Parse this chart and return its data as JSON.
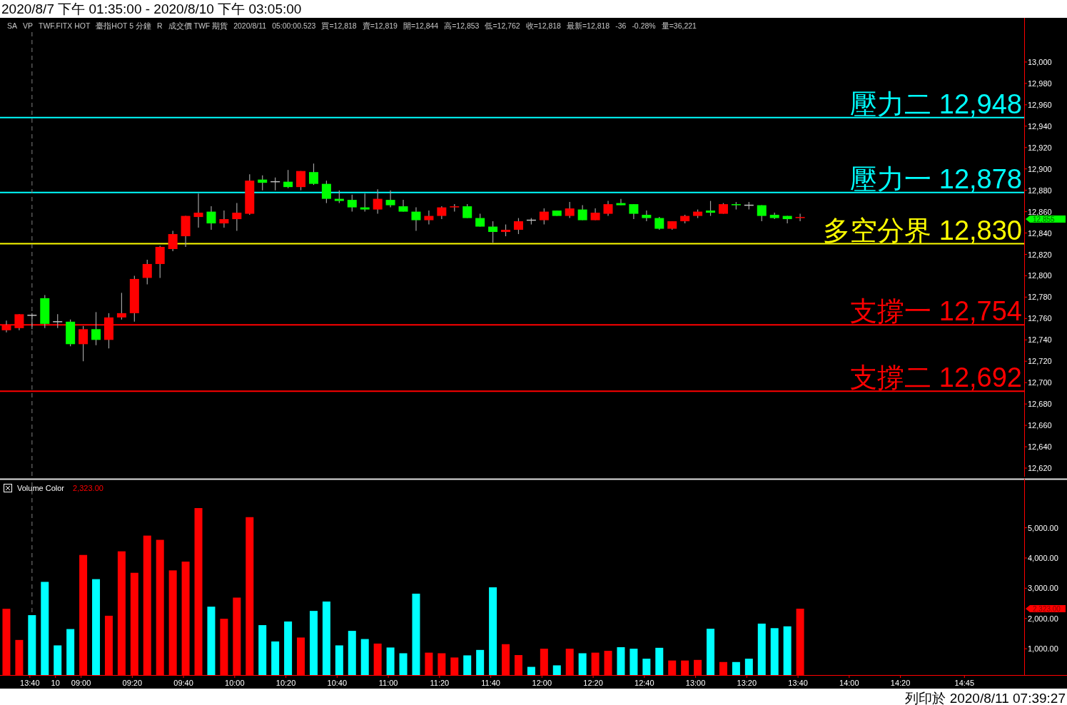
{
  "chart_data": [
    {
      "type": "candlestick",
      "title": "2020/8/7 下午 01:35:00 - 2020/8/10 下午 03:05:00",
      "annotations": [
        "SA",
        "VP",
        "TWF.FITX HOT",
        "臺指HOT 5 分鐘",
        "R",
        "成交價 TWF 期貨",
        "2020/8/11",
        "05:00:00.523",
        "買=12,818",
        "賣=12,819",
        "開=12,844",
        "高=12,853",
        "低=12,762",
        "收=12,818",
        "最新=12,818",
        "-36",
        "-0.28%",
        "量=36,221",
        "12,855"
      ],
      "categories": [
        null,
        null,
        "13:40",
        null,
        "10",
        null,
        "09:00",
        null,
        null,
        null,
        "09:20",
        null,
        null,
        null,
        "09:40",
        null,
        null,
        null,
        "10:00",
        null,
        null,
        null,
        "10:20",
        null,
        null,
        null,
        "10:40",
        null,
        null,
        null,
        "11:00",
        null,
        null,
        null,
        "11:20",
        null,
        null,
        null,
        "11:40",
        null,
        null,
        null,
        "12:00",
        null,
        null,
        null,
        "12:20",
        null,
        null,
        null,
        "12:40",
        null,
        null,
        null,
        "13:00",
        null,
        null,
        null,
        "13:20",
        null,
        null,
        null,
        "13:40",
        null,
        null,
        null,
        "14:00",
        null,
        null,
        null,
        "14:20",
        null,
        null,
        null,
        null,
        "14:45",
        null,
        null,
        null,
        null
      ],
      "ohlc": [
        [
          12749,
          12758,
          12747,
          12754
        ],
        [
          12751,
          12764,
          12749,
          12764
        ],
        [
          12763,
          12765,
          12750,
          12763
        ],
        [
          12779,
          12782,
          12751,
          12755
        ],
        [
          12757,
          12764,
          12751,
          12757
        ],
        [
          12757,
          12759,
          12734,
          12736
        ],
        [
          12736,
          12753,
          12720,
          12750
        ],
        [
          12750,
          12766,
          12735,
          12740
        ],
        [
          12740,
          12765,
          12732,
          12761
        ],
        [
          12761,
          12784,
          12759,
          12765
        ],
        [
          12765,
          12800,
          12757,
          12797
        ],
        [
          12798,
          12815,
          12792,
          12811
        ],
        [
          12811,
          12828,
          12798,
          12827
        ],
        [
          12825,
          12842,
          12823,
          12839
        ],
        [
          12837,
          12856,
          12827,
          12856
        ],
        [
          12855,
          12877,
          12845,
          12859
        ],
        [
          12860,
          12865,
          12843,
          12849
        ],
        [
          12849,
          12861,
          12845,
          12853
        ],
        [
          12853,
          12868,
          12842,
          12859
        ],
        [
          12858,
          12895,
          12857,
          12889
        ],
        [
          12890,
          12894,
          12880,
          12887
        ],
        [
          12888,
          12892,
          12880,
          12888
        ],
        [
          12888,
          12899,
          12882,
          12883
        ],
        [
          12883,
          12898,
          12880,
          12898
        ],
        [
          12897,
          12905,
          12885,
          12886
        ],
        [
          12886,
          12889,
          12868,
          12872
        ],
        [
          12872,
          12880,
          12868,
          12870
        ],
        [
          12871,
          12876,
          12860,
          12864
        ],
        [
          12864,
          12877,
          12860,
          12862
        ],
        [
          12862,
          12881,
          12858,
          12872
        ],
        [
          12871,
          12880,
          12864,
          12866
        ],
        [
          12865,
          12871,
          12860,
          12860
        ],
        [
          12860,
          12864,
          12842,
          12852
        ],
        [
          12852,
          12861,
          12848,
          12856
        ],
        [
          12856,
          12865,
          12853,
          12864
        ],
        [
          12864,
          12867,
          12860,
          12865
        ],
        [
          12865,
          12867,
          12854,
          12854
        ],
        [
          12854,
          12858,
          12846,
          12846
        ],
        [
          12846,
          12851,
          12831,
          12841
        ],
        [
          12841,
          12848,
          12837,
          12843
        ],
        [
          12843,
          12854,
          12839,
          12851
        ],
        [
          12852,
          12854,
          12848,
          12852
        ],
        [
          12852,
          12863,
          12848,
          12860
        ],
        [
          12861,
          12861,
          12856,
          12856
        ],
        [
          12856,
          12869,
          12854,
          12863
        ],
        [
          12862,
          12866,
          12852,
          12852
        ],
        [
          12852,
          12863,
          12852,
          12859
        ],
        [
          12858,
          12870,
          12856,
          12867
        ],
        [
          12868,
          12872,
          12866,
          12866
        ],
        [
          12867,
          12867,
          12853,
          12858
        ],
        [
          12857,
          12861,
          12851,
          12854
        ],
        [
          12854,
          12855,
          12843,
          12844
        ],
        [
          12844,
          12851,
          12843,
          12851
        ],
        [
          12851,
          12857,
          12849,
          12856
        ],
        [
          12856,
          12862,
          12854,
          12860
        ],
        [
          12861,
          12870,
          12856,
          12859
        ],
        [
          12858,
          12868,
          12858,
          12867
        ],
        [
          12867,
          12869,
          12862,
          12866
        ],
        [
          12866,
          12869,
          12862,
          12866
        ],
        [
          12866,
          12866,
          12851,
          12856
        ],
        [
          12857,
          12859,
          12853,
          12854
        ],
        [
          12856,
          12856,
          12849,
          12853
        ],
        [
          12854,
          12858,
          12851,
          12855
        ],
        null,
        null,
        null,
        null,
        null,
        null,
        null,
        null,
        null,
        null,
        null,
        null,
        null,
        null,
        null,
        null,
        null
      ],
      "colors": [
        "#ff0000",
        "#ff0000",
        "#c0c0c0",
        "#00ff00",
        "#c0c0c0",
        "#00ff00",
        "#ff0000",
        "#00ff00",
        "#ff0000",
        "#ff0000",
        "#ff0000",
        "#ff0000",
        "#ff0000",
        "#ff0000",
        "#ff0000",
        "#ff0000",
        "#00ff00",
        "#ff0000",
        "#ff0000",
        "#ff0000",
        "#00ff00",
        "#c0c0c0",
        "#00ff00",
        "#ff0000",
        "#00ff00",
        "#00ff00",
        "#00ff00",
        "#00ff00",
        "#00ff00",
        "#ff0000",
        "#00ff00",
        "#00ff00",
        "#00ff00",
        "#ff0000",
        "#ff0000",
        "#ff0000",
        "#00ff00",
        "#00ff00",
        "#00ff00",
        "#ff0000",
        "#ff0000",
        "#c0c0c0",
        "#ff0000",
        "#00ff00",
        "#ff0000",
        "#00ff00",
        "#ff0000",
        "#ff0000",
        "#00ff00",
        "#00ff00",
        "#00ff00",
        "#00ff00",
        "#ff0000",
        "#ff0000",
        "#ff0000",
        "#00ff00",
        "#ff0000",
        "#00ff00",
        "#c0c0c0",
        "#00ff00",
        "#00ff00",
        "#00ff00",
        "#ff0000",
        null,
        null,
        null,
        null,
        null,
        null,
        null,
        null,
        null,
        null,
        null,
        null,
        null,
        null,
        null,
        null,
        null
      ],
      "ylim": [
        12612,
        13028
      ],
      "yticks": [
        {
          "value": 12620,
          "label": "12,620"
        },
        {
          "value": 12640,
          "label": "12,640"
        },
        {
          "value": 12660,
          "label": "12,660"
        },
        {
          "value": 12680,
          "label": "12,680"
        },
        {
          "value": 12700,
          "label": "12,700"
        },
        {
          "value": 12720,
          "label": "12,720"
        },
        {
          "value": 12740,
          "label": "12,740"
        },
        {
          "value": 12760,
          "label": "12,760"
        },
        {
          "value": 12780,
          "label": "12,780"
        },
        {
          "value": 12800,
          "label": "12,800"
        },
        {
          "value": 12820,
          "label": "12,820"
        },
        {
          "value": 12840,
          "label": "12,840"
        },
        {
          "value": 12860,
          "label": "12,860"
        },
        {
          "value": 12880,
          "label": "12,880"
        },
        {
          "value": 12900,
          "label": "12,900"
        },
        {
          "value": 12920,
          "label": "12,920"
        },
        {
          "value": 12940,
          "label": "12,940"
        },
        {
          "value": 12960,
          "label": "12,960"
        },
        {
          "value": 12980,
          "label": "12,980"
        },
        {
          "value": 13000,
          "label": "13,000"
        }
      ],
      "ref_lines": [
        {
          "axis": "y",
          "value": 12948,
          "label": "壓力二 12,948",
          "color": "#00ffff"
        },
        {
          "axis": "y",
          "value": 12878,
          "label": "壓力一 12,878",
          "color": "#00ffff"
        },
        {
          "axis": "y",
          "value": 12830,
          "label": "多空分界 12,830",
          "color": "#ffff00"
        },
        {
          "axis": "y",
          "value": 12754,
          "label": "支撐一 12,754",
          "color": "#ff0000"
        },
        {
          "axis": "y",
          "value": 12692,
          "label": "支撐二 12,692",
          "color": "#ff0000"
        },
        {
          "axis": "x",
          "value": "13:40",
          "color": "#808080",
          "line_style": "dashed"
        }
      ],
      "tick_labels": "y"
    },
    {
      "type": "bar",
      "title": "Volume Color",
      "annotations": [
        "2,323.00",
        "列印於 2020/8/11 07:39:27"
      ],
      "categories": [
        null,
        null,
        "13:40",
        null,
        "10",
        null,
        "09:00",
        null,
        null,
        null,
        "09:20",
        null,
        null,
        null,
        "09:40",
        null,
        null,
        null,
        "10:00",
        null,
        null,
        null,
        "10:20",
        null,
        null,
        null,
        "10:40",
        null,
        null,
        null,
        "11:00",
        null,
        null,
        null,
        "11:20",
        null,
        null,
        null,
        "11:40",
        null,
        null,
        null,
        "12:00",
        null,
        null,
        null,
        "12:20",
        null,
        null,
        null,
        "12:40",
        null,
        null,
        null,
        "13:00",
        null,
        null,
        null,
        "13:20",
        null,
        null,
        null,
        "13:40",
        null,
        null,
        null,
        "14:00",
        null,
        null,
        null,
        "14:20",
        null,
        null,
        null,
        null,
        "14:45",
        null,
        null,
        null,
        null
      ],
      "values": [
        2320,
        1290,
        2110,
        3210,
        1110,
        1650,
        4100,
        3300,
        2090,
        4220,
        3510,
        4740,
        4600,
        3590,
        3880,
        5650,
        2390,
        1990,
        2690,
        5350,
        1780,
        1240,
        1900,
        1370,
        2250,
        2560,
        1110,
        1590,
        1320,
        1170,
        1040,
        850,
        2820,
        870,
        850,
        710,
        780,
        960,
        3030,
        1150,
        790,
        400,
        1000,
        450,
        1000,
        850,
        870,
        930,
        1050,
        1000,
        670,
        1030,
        610,
        610,
        630,
        1660,
        560,
        560,
        670,
        1830,
        1680,
        1740,
        2323,
        null,
        null,
        null,
        null,
        null,
        null,
        null,
        null,
        null,
        null,
        null,
        null,
        null,
        null,
        null,
        null,
        null
      ],
      "colors": [
        "#ff0000",
        "#ff0000",
        "#00ffff",
        "#00ffff",
        "#00ffff",
        "#00ffff",
        "#ff0000",
        "#00ffff",
        "#ff0000",
        "#ff0000",
        "#ff0000",
        "#ff0000",
        "#ff0000",
        "#ff0000",
        "#ff0000",
        "#ff0000",
        "#00ffff",
        "#ff0000",
        "#ff0000",
        "#ff0000",
        "#00ffff",
        "#00ffff",
        "#00ffff",
        "#ff0000",
        "#00ffff",
        "#00ffff",
        "#00ffff",
        "#00ffff",
        "#00ffff",
        "#ff0000",
        "#00ffff",
        "#00ffff",
        "#00ffff",
        "#ff0000",
        "#ff0000",
        "#ff0000",
        "#00ffff",
        "#00ffff",
        "#00ffff",
        "#ff0000",
        "#ff0000",
        "#00ffff",
        "#ff0000",
        "#00ffff",
        "#ff0000",
        "#00ffff",
        "#ff0000",
        "#ff0000",
        "#00ffff",
        "#00ffff",
        "#00ffff",
        "#00ffff",
        "#ff0000",
        "#ff0000",
        "#ff0000",
        "#00ffff",
        "#ff0000",
        "#00ffff",
        "#00ffff",
        "#00ffff",
        "#00ffff",
        "#00ffff",
        "#ff0000",
        null,
        null,
        null,
        null,
        null,
        null,
        null,
        null,
        null,
        null,
        null,
        null,
        null,
        null,
        null,
        null,
        null
      ],
      "ylim": [
        130,
        6500
      ],
      "yticks": [
        {
          "value": 1000,
          "label": "1,000.00"
        },
        {
          "value": 2000,
          "label": "2,000.00"
        },
        {
          "value": 3000,
          "label": "3,000.00"
        },
        {
          "value": 4000,
          "label": "4,000.00"
        },
        {
          "value": 5000,
          "label": "5,000.00"
        }
      ],
      "ref_lines": [
        {
          "axis": "x",
          "value": "13:40",
          "color": "#808080",
          "line_style": "dashed"
        }
      ]
    }
  ]
}
